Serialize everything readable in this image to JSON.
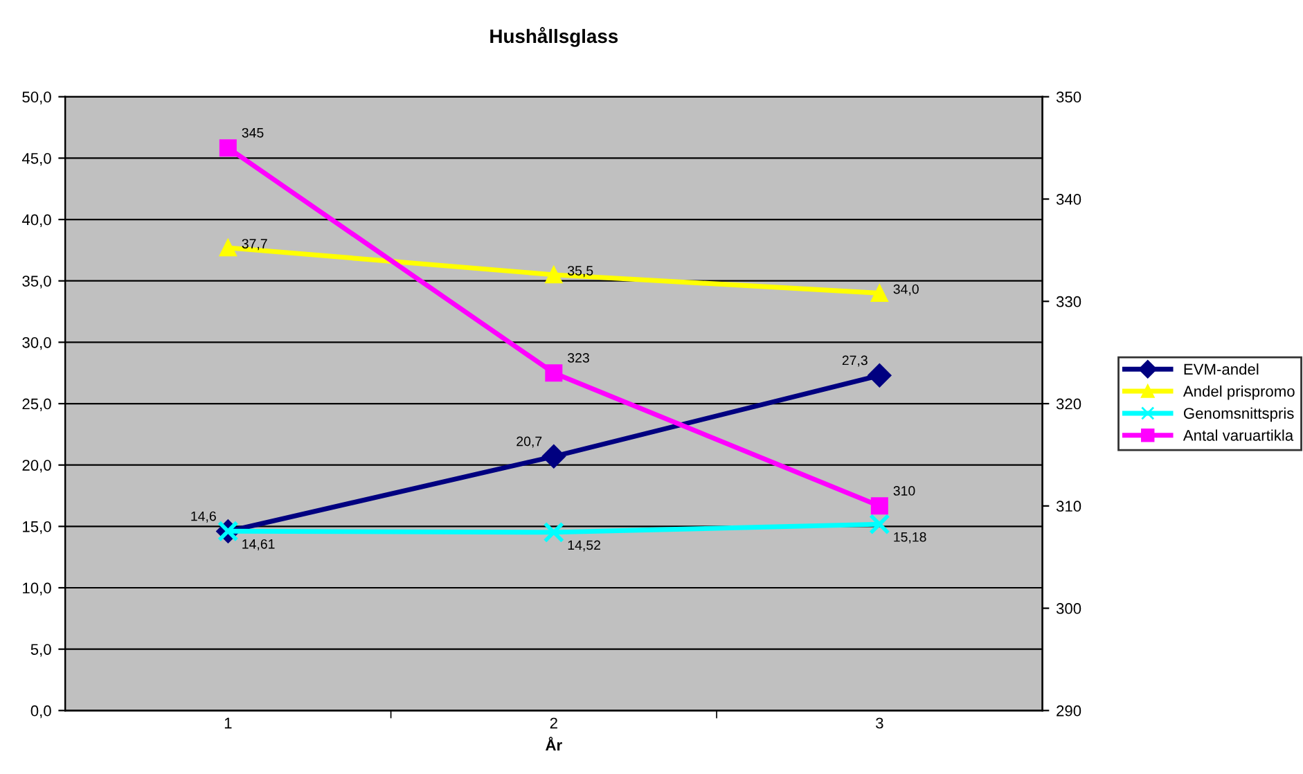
{
  "chart_data": {
    "type": "line",
    "title": "Hushållsglass",
    "xlabel": "År",
    "categories": [
      "1",
      "2",
      "3"
    ],
    "ylim": [
      0,
      50
    ],
    "yticks": [
      {
        "value": 0,
        "label": "0,0"
      },
      {
        "value": 5,
        "label": "5,0"
      },
      {
        "value": 10,
        "label": "10,0"
      },
      {
        "value": 15,
        "label": "15,0"
      },
      {
        "value": 20,
        "label": "20,0"
      },
      {
        "value": 25,
        "label": "25,0"
      },
      {
        "value": 30,
        "label": "30,0"
      },
      {
        "value": 35,
        "label": "35,0"
      },
      {
        "value": 40,
        "label": "40,0"
      },
      {
        "value": 45,
        "label": "45,0"
      },
      {
        "value": 50,
        "label": "50,0"
      }
    ],
    "y2lim": [
      290,
      350
    ],
    "y2ticks": [
      290,
      300,
      310,
      320,
      330,
      340,
      350
    ],
    "grid": "y",
    "legend": "right",
    "series": [
      {
        "name": "EVM-andel",
        "color": "#000080",
        "marker": "diamond",
        "values": [
          14.6,
          20.7,
          27.3
        ],
        "value_labels": [
          "14,6",
          "20,7",
          "27,3"
        ]
      },
      {
        "name": "Andel prispromo",
        "color": "#ffff00",
        "marker": "triangle",
        "values": [
          37.7,
          35.5,
          34.0
        ],
        "value_labels": [
          "37,7",
          "35,5",
          "34,0"
        ]
      },
      {
        "name": "Genomsnittspris",
        "color": "#00ffff",
        "marker": "cross",
        "values": [
          14.61,
          14.52,
          15.18
        ],
        "value_labels": [
          "14,61",
          "14,52",
          "15,18"
        ]
      },
      {
        "name": "Antal varuartikla",
        "color": "#ff00ff",
        "marker": "square",
        "axis": "y2",
        "values": [
          345,
          323,
          310
        ],
        "value_labels": [
          "345",
          "323",
          "310"
        ]
      }
    ]
  }
}
